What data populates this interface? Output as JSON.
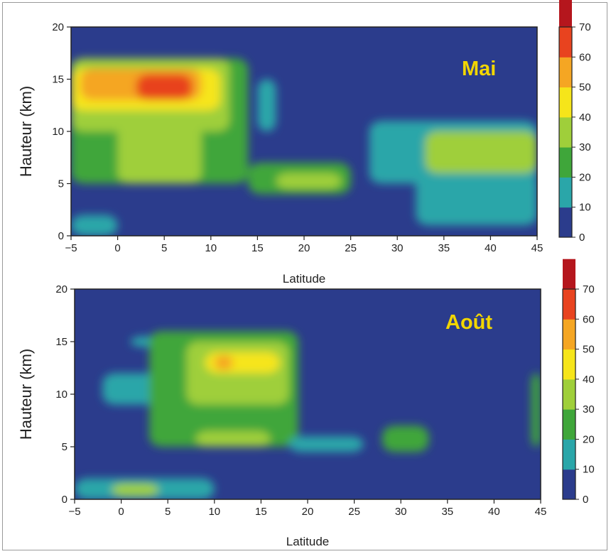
{
  "chart_data": [
    {
      "type": "heatmap",
      "title": "Mai",
      "xlabel": "Latitude",
      "ylabel": "Hauteur (km)",
      "xlim": [
        -5,
        45
      ],
      "ylim": [
        0,
        20
      ],
      "x_ticks": [
        -5,
        0,
        5,
        10,
        15,
        20,
        25,
        30,
        35,
        40,
        45
      ],
      "y_ticks": [
        0,
        5,
        10,
        15,
        20
      ],
      "colorbar": {
        "levels": [
          0,
          10,
          20,
          30,
          40,
          50,
          60,
          70
        ],
        "tick_labels": [
          "0",
          "10",
          "20",
          "30",
          "40",
          "50",
          "60",
          "70"
        ],
        "colors": [
          "#2b3c8c",
          "#2aa6a9",
          "#3fa63a",
          "#9fcf3a",
          "#f6e51a",
          "#f5a623",
          "#e8431f",
          "#b5161d"
        ]
      },
      "regions": [
        {
          "x0": -5,
          "x1": 14,
          "y0": 5,
          "y1": 17,
          "value": 20
        },
        {
          "x0": 14,
          "x1": 25,
          "y0": 4,
          "y1": 7,
          "value": 20
        },
        {
          "x0": 15,
          "x1": 17,
          "y0": 10,
          "y1": 15,
          "value": 15
        },
        {
          "x0": 27,
          "x1": 45,
          "y0": 5,
          "y1": 11,
          "value": 15
        },
        {
          "x0": 32,
          "x1": 45,
          "y0": 1,
          "y1": 6,
          "value": 15
        },
        {
          "x0": -5,
          "x1": 0,
          "y0": 0,
          "y1": 2,
          "value": 15
        },
        {
          "x0": -5,
          "x1": 12,
          "y0": 10,
          "y1": 17,
          "value": 30
        },
        {
          "x0": 0,
          "x1": 9,
          "y0": 5,
          "y1": 12,
          "value": 35
        },
        {
          "x0": 33,
          "x1": 45,
          "y0": 6,
          "y1": 10,
          "value": 30
        },
        {
          "x0": 17,
          "x1": 24,
          "y0": 4.5,
          "y1": 6,
          "value": 30
        },
        {
          "x0": -5,
          "x1": 11,
          "y0": 12,
          "y1": 16,
          "value": 45
        },
        {
          "x0": -4,
          "x1": 9,
          "y0": 13,
          "y1": 16,
          "value": 55
        },
        {
          "x0": 2,
          "x1": 8,
          "y0": 13,
          "y1": 15.5,
          "value": 62
        }
      ]
    },
    {
      "type": "heatmap",
      "title": "Août",
      "xlabel": "Latitude",
      "ylabel": "Hauteur (km)",
      "xlim": [
        -5,
        45
      ],
      "ylim": [
        0,
        20
      ],
      "x_ticks": [
        -5,
        0,
        5,
        10,
        15,
        20,
        25,
        30,
        35,
        40,
        45
      ],
      "y_ticks": [
        0,
        5,
        10,
        15,
        20
      ],
      "colorbar": {
        "levels": [
          0,
          10,
          20,
          30,
          40,
          50,
          60,
          70
        ],
        "tick_labels": [
          "0",
          "10",
          "20",
          "30",
          "40",
          "50",
          "60",
          "70"
        ],
        "colors": [
          "#2b3c8c",
          "#2aa6a9",
          "#3fa63a",
          "#9fcf3a",
          "#f6e51a",
          "#f5a623",
          "#e8431f",
          "#b5161d"
        ]
      },
      "regions": [
        {
          "x0": -2,
          "x1": 4,
          "y0": 9,
          "y1": 12,
          "value": 15
        },
        {
          "x0": 1,
          "x1": 5,
          "y0": 14.5,
          "y1": 15.5,
          "value": 15
        },
        {
          "x0": 3,
          "x1": 19,
          "y0": 5,
          "y1": 16,
          "value": 20
        },
        {
          "x0": 18,
          "x1": 26,
          "y0": 4.5,
          "y1": 6,
          "value": 15
        },
        {
          "x0": 28,
          "x1": 33,
          "y0": 4.5,
          "y1": 7,
          "value": 20
        },
        {
          "x0": 44,
          "x1": 45,
          "y0": 5,
          "y1": 12,
          "value": 20
        },
        {
          "x0": -5,
          "x1": 10,
          "y0": 0,
          "y1": 2,
          "value": 15
        },
        {
          "x0": 7,
          "x1": 18,
          "y0": 9,
          "y1": 15,
          "value": 35
        },
        {
          "x0": 8,
          "x1": 16,
          "y0": 5,
          "y1": 6.5,
          "value": 35
        },
        {
          "x0": 9,
          "x1": 17,
          "y0": 12,
          "y1": 14,
          "value": 45
        },
        {
          "x0": 10,
          "x1": 12,
          "y0": 12.3,
          "y1": 13.7,
          "value": 55
        },
        {
          "x0": -1,
          "x1": 4,
          "y0": 0.3,
          "y1": 1.5,
          "value": 35
        }
      ]
    }
  ],
  "panels": [
    {
      "month_label": "Mai",
      "xlabel": "Latitude",
      "ylabel": "Hauteur (km)"
    },
    {
      "month_label": "Août",
      "xlabel": "Latitude",
      "ylabel": "Hauteur (km)"
    }
  ]
}
